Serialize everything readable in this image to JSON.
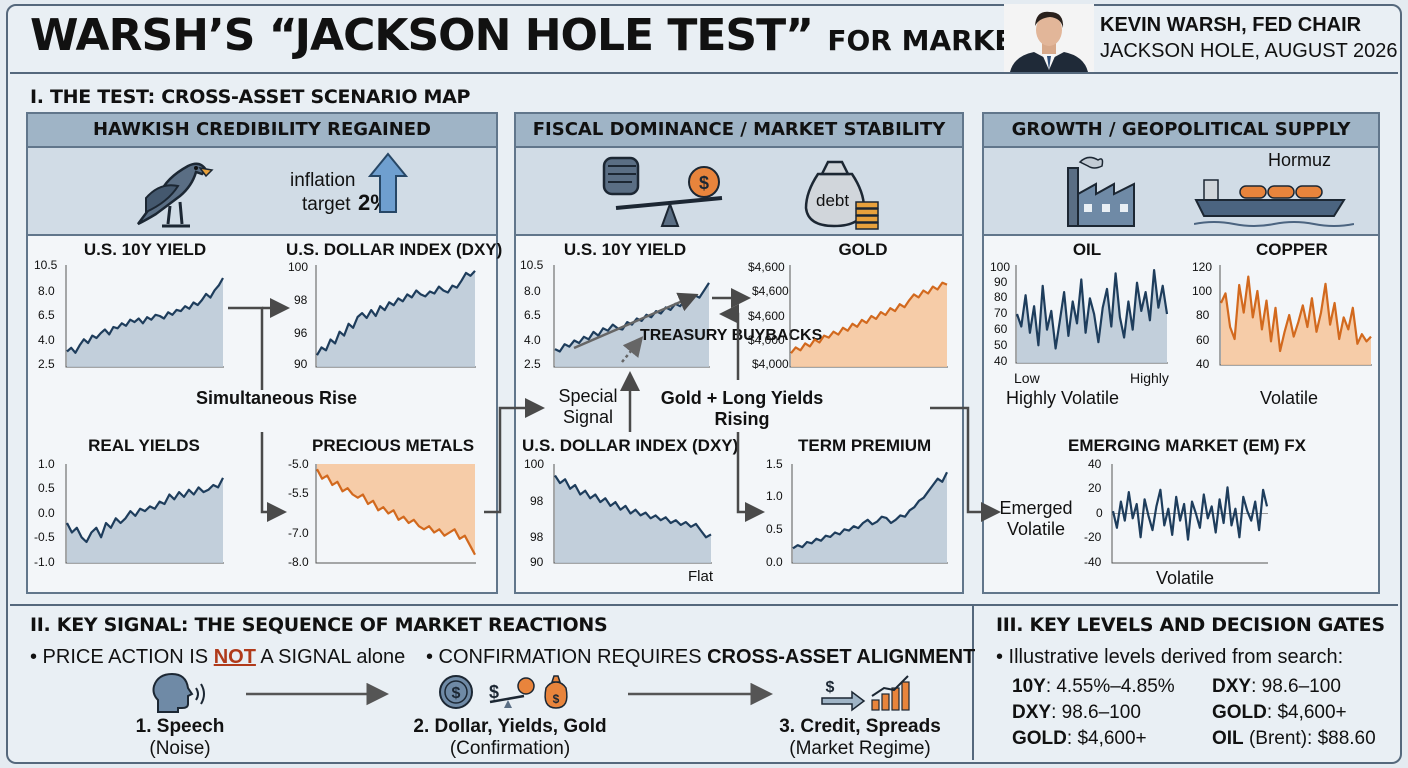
{
  "header": {
    "title_main": "WARSH’S “JACKSON HOLE TEST”",
    "title_sub": "FOR MARKETS",
    "chair_name": "KEVIN WARSH, FED CHAIR",
    "chair_event": "JACKSON HOLE, AUGUST 2026"
  },
  "section1": {
    "title": "I. THE TEST: CROSS-ASSET SCENARIO MAP",
    "panels": [
      {
        "heading": "HAWKISH CREDIBILITY REGAINED",
        "inflation_word": "inflation",
        "target_word": "target",
        "target_value": "2%",
        "mid_label": "Simultaneous Rise"
      },
      {
        "heading": "FISCAL DOMINANCE / MARKET STABILITY",
        "debt_word": "debt",
        "buyback_label": "TREASURY BUYBACKS",
        "special_label": "Special Signal",
        "gold_label": "Gold + Long Yields Rising",
        "flat_label": "Flat"
      },
      {
        "heading": "GROWTH / GEOPOLITICAL SUPPLY",
        "hormuz": "Hormuz",
        "oil_low": "Low",
        "oil_high": "Highly",
        "oil_note": "Highly Volatile",
        "copper_note": "Volatile",
        "em_note": "Emerged Volatile",
        "em_bottom": "Volatile"
      }
    ]
  },
  "charts": [
    {
      "type": "line",
      "title": "U.S. 10Y YIELD",
      "yticks": [
        "10.5",
        "8.0",
        "6.5",
        "4.0",
        "2.5"
      ],
      "ylim": [
        2.5,
        10.5
      ],
      "values": [
        3.6,
        3.9,
        3.5,
        4.1,
        4.6,
        4.3,
        4.9,
        4.7,
        5.1,
        5.4,
        5.0,
        5.6,
        5.5,
        5.9,
        5.7,
        6.2,
        6.0,
        6.3,
        5.9,
        6.4,
        6.2,
        6.6,
        6.5,
        6.3,
        6.8,
        6.6,
        7.0,
        6.9,
        7.3,
        7.1,
        7.6,
        7.4,
        7.8,
        8.3,
        8.0,
        8.6,
        9.0,
        9.6
      ],
      "color": "#1e3d5c",
      "fill": "#b8c8d6"
    },
    {
      "type": "line",
      "title": "U.S. DOLLAR INDEX (DXY)",
      "yticks": [
        "100",
        "98",
        "96",
        "90"
      ],
      "ylim": [
        90,
        100
      ],
      "values": [
        91.0,
        91.8,
        91.5,
        92.6,
        92.2,
        93.4,
        93.0,
        94.2,
        93.8,
        94.9,
        95.3,
        94.8,
        95.6,
        95.0,
        96.0,
        95.6,
        96.4,
        96.1,
        96.8,
        96.5,
        97.2,
        96.9,
        97.6,
        97.2,
        97.0,
        97.5,
        97.3,
        98.0,
        97.6,
        97.4,
        98.1,
        97.9,
        98.6,
        99.4,
        99.1,
        99.6
      ],
      "color": "#1e3d5c",
      "fill": "#b8c8d6"
    },
    {
      "type": "line",
      "title": "REAL YIELDS",
      "yticks": [
        "1.0",
        "0.5",
        "0.0",
        "-0.5",
        "-1.0"
      ],
      "ylim": [
        -1.0,
        1.0
      ],
      "values": [
        -0.2,
        -0.4,
        -0.3,
        -0.5,
        -0.6,
        -0.4,
        -0.3,
        -0.5,
        -0.2,
        -0.3,
        -0.1,
        -0.2,
        -0.1,
        0.05,
        -0.05,
        0.1,
        0.05,
        0.15,
        0.1,
        0.25,
        0.2,
        0.4,
        0.3,
        0.45,
        0.35,
        0.5,
        0.4,
        0.55,
        0.45,
        0.5,
        0.6,
        0.55,
        0.75
      ],
      "color": "#1e3d5c",
      "fill": "#b8c8d6"
    },
    {
      "type": "line",
      "title": "PRECIOUS METALS",
      "yticks": [
        "-5.0",
        "-5.5",
        "-7.0",
        "-8.0"
      ],
      "ylim": [
        -8.0,
        -5.0
      ],
      "values": [
        -5.1,
        -5.4,
        -5.3,
        -5.6,
        -5.5,
        -5.8,
        -5.7,
        -5.9,
        -6.0,
        -5.9,
        -6.2,
        -6.1,
        -6.4,
        -6.3,
        -6.5,
        -6.4,
        -6.7,
        -6.6,
        -6.8,
        -6.7,
        -6.9,
        -7.0,
        -6.9,
        -7.1,
        -7.0,
        -7.2,
        -7.1,
        -7.0,
        -7.3,
        -7.2,
        -7.5,
        -7.8
      ],
      "color": "#d2691e",
      "fill": "#f6c49a",
      "fill_above": true
    },
    {
      "type": "line",
      "title": "U.S. 10Y YIELD",
      "yticks": [
        "10.5",
        "8.0",
        "6.5",
        "4.0",
        "2.5"
      ],
      "ylim": [
        2.5,
        10.5
      ],
      "values": [
        3.8,
        3.6,
        4.2,
        4.0,
        4.5,
        4.3,
        4.8,
        4.6,
        5.2,
        4.9,
        5.5,
        5.3,
        5.8,
        5.5,
        5.4,
        6.0,
        5.8,
        6.3,
        6.1,
        6.6,
        6.4,
        6.9,
        6.7,
        7.2,
        7.0,
        7.5,
        7.3,
        7.8,
        7.6,
        8.2,
        8.0,
        8.6,
        9.2
      ],
      "color": "#1e3d5c",
      "fill": "#b8c8d6"
    },
    {
      "type": "line",
      "title": "GOLD",
      "yticks": [
        "$4,600",
        "$4,600",
        "$4,600",
        "$4,000",
        "$4,000"
      ],
      "ylim": [
        0,
        10
      ],
      "values": [
        1.2,
        1.8,
        1.5,
        2.2,
        1.9,
        2.6,
        2.3,
        3.0,
        2.8,
        3.4,
        3.1,
        3.8,
        3.5,
        4.2,
        3.9,
        4.6,
        4.3,
        5.0,
        4.7,
        5.4,
        5.1,
        5.8,
        5.5,
        6.2,
        5.9,
        6.6,
        7.2,
        6.9,
        7.6,
        7.3,
        8.0,
        7.7,
        8.4,
        8.2
      ],
      "color": "#d2691e",
      "fill": "#f6c49a"
    },
    {
      "type": "line",
      "title": "U.S. DOLLAR INDEX (DXY)",
      "yticks": [
        "100",
        "98",
        "98",
        "90"
      ],
      "ylim": [
        90,
        100
      ],
      "values": [
        99.0,
        98.2,
        98.6,
        97.6,
        98.0,
        97.0,
        97.4,
        96.6,
        97.0,
        96.2,
        96.6,
        95.8,
        96.2,
        95.4,
        95.8,
        95.0,
        95.4,
        94.8,
        95.1,
        94.5,
        94.8,
        94.3,
        94.6,
        94.0,
        94.3,
        93.8,
        94.1,
        93.6,
        93.9,
        93.2,
        92.5,
        92.8
      ],
      "color": "#1e3d5c",
      "fill": "#b8c8d6"
    },
    {
      "type": "line",
      "title": "TERM PREMIUM",
      "yticks": [
        "1.5",
        "1.0",
        "0.5",
        "0.0"
      ],
      "ylim": [
        0.0,
        1.5
      ],
      "values": [
        0.2,
        0.25,
        0.22,
        0.3,
        0.28,
        0.35,
        0.32,
        0.4,
        0.38,
        0.45,
        0.42,
        0.5,
        0.48,
        0.55,
        0.52,
        0.6,
        0.65,
        0.58,
        0.62,
        0.7,
        0.68,
        0.6,
        0.65,
        0.72,
        0.7,
        0.8,
        0.85,
        0.95,
        1.0,
        1.1,
        1.2,
        1.3,
        1.25,
        1.4
      ],
      "color": "#1e3d5c",
      "fill": "#b8c8d6"
    },
    {
      "type": "line",
      "title": "OIL",
      "yticks": [
        "100",
        "90",
        "80",
        "70",
        "60",
        "50",
        "40"
      ],
      "ylim": [
        40,
        100
      ],
      "values": [
        70,
        62,
        82,
        58,
        75,
        50,
        88,
        60,
        72,
        48,
        66,
        84,
        56,
        78,
        64,
        92,
        58,
        80,
        70,
        52,
        74,
        86,
        62,
        96,
        68,
        55,
        78,
        60,
        90,
        72,
        84,
        66,
        98,
        74,
        88,
        70
      ],
      "color": "#1e3d5c",
      "fill": "#b8c8d6"
    },
    {
      "type": "line",
      "title": "COPPER",
      "yticks": [
        "120",
        "100",
        "80",
        "60",
        "40"
      ],
      "ylim": [
        40,
        120
      ],
      "values": [
        90,
        98,
        70,
        60,
        105,
        82,
        112,
        78,
        100,
        68,
        92,
        58,
        86,
        50,
        66,
        80,
        62,
        74,
        88,
        70,
        94,
        66,
        82,
        106,
        72,
        90,
        60,
        78,
        68,
        86,
        56,
        64,
        58,
        62
      ],
      "color": "#d2691e",
      "fill": "#f6c49a"
    },
    {
      "type": "line",
      "title": "EMERGING MARKET (EM) FX",
      "yticks": [
        "40",
        "20",
        "0",
        "-20",
        "-40"
      ],
      "ylim": [
        -40,
        40
      ],
      "values": [
        2,
        -12,
        10,
        -6,
        18,
        -4,
        8,
        -20,
        12,
        -2,
        -14,
        6,
        20,
        -10,
        4,
        -18,
        14,
        -6,
        8,
        -22,
        10,
        0,
        -12,
        16,
        -4,
        6,
        -16,
        12,
        -8,
        22,
        -10,
        4,
        -20,
        14,
        2,
        -6,
        10,
        -14,
        20,
        6
      ],
      "color": "#1e3d5c",
      "fill": "none",
      "zero_line": true
    }
  ],
  "section2": {
    "title": "II. KEY SIGNAL: THE SEQUENCE OF MARKET REACTIONS",
    "bullet1_pre": "• PRICE ACTION IS ",
    "bullet1_not": "NOT",
    "bullet1_post": " A SIGNAL alone",
    "bullet2_pre": "• CONFIRMATION REQUIRES ",
    "bullet2_bold": "CROSS-ASSET ALIGNMENT",
    "steps": [
      {
        "label": "1. Speech",
        "note": "(Noise)"
      },
      {
        "label": "2. Dollar, Yields, Gold",
        "note": "(Confirmation)"
      },
      {
        "label": "3. Credit, Spreads",
        "note": "(Market Regime)"
      }
    ]
  },
  "section3": {
    "title": "III. KEY LEVELS AND DECISION GATES",
    "intro": "• Illustrative levels derived from search:",
    "levels": [
      {
        "key": "10Y",
        "val": ": 4.55%–4.85%"
      },
      {
        "key": "DXY",
        "val": ": 98.6–100"
      },
      {
        "key": "DXY",
        "val": ": 98.6–100"
      },
      {
        "key": "GOLD",
        "val": ": $4,600+"
      },
      {
        "key": "GOLD",
        "val": ": $4,600+"
      },
      {
        "key": "OIL",
        "val": " (Brent): $88.60"
      }
    ]
  },
  "colors": {
    "navy": "#1e3d5c",
    "orange": "#d2691e",
    "accent_red": "#b03a1a",
    "panel_head": "#9fb4c6"
  }
}
